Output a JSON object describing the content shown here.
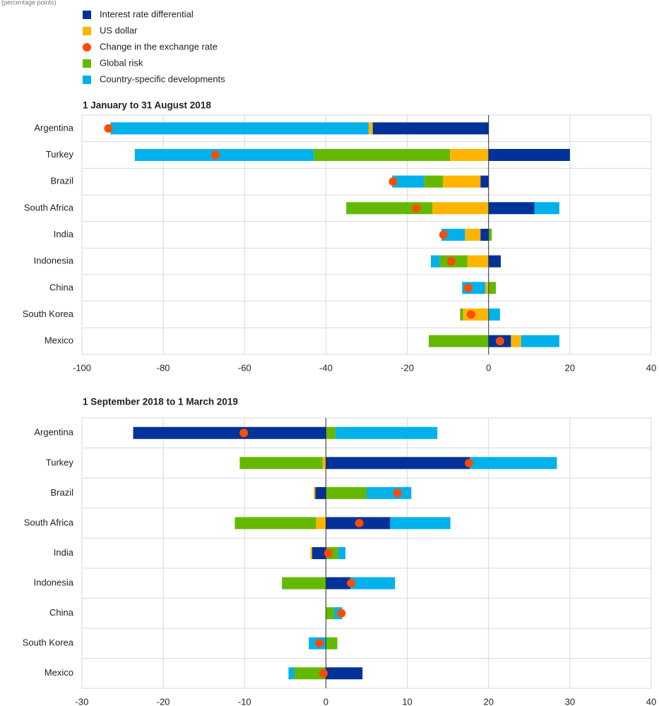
{
  "chart_data": [
    {
      "type": "bar",
      "orientation": "horizontal",
      "stacked": true,
      "subtitle": "(percentage points)",
      "title": "1 January to 31 August 2018",
      "categories": [
        "Argentina",
        "Turkey",
        "Brazil",
        "South Africa",
        "India",
        "Indonesia",
        "China",
        "South Korea",
        "Mexico"
      ],
      "series": [
        {
          "name": "Interest rate differential",
          "color": "#003299",
          "values": [
            -28.5,
            20,
            -2,
            11.3,
            -2,
            3,
            0,
            0,
            5.5
          ]
        },
        {
          "name": "US dollar",
          "color": "#ffb400",
          "values": [
            -1,
            -9.5,
            -9.2,
            -13.8,
            -3.8,
            -5.2,
            -0.8,
            -6.3,
            2.5
          ]
        },
        {
          "name": "Change in the exchange rate",
          "color": "#ff4b00",
          "type": "scatter",
          "values": [
            -93.5,
            -67.2,
            -23.5,
            -17.8,
            -11.1,
            -9.2,
            -5,
            -4.3,
            2.8
          ]
        },
        {
          "name": "Global risk",
          "color": "#65b800",
          "values": [
            0,
            -33.5,
            -4.7,
            -21.2,
            0.8,
            -6.8,
            1.8,
            -0.7,
            -14.7
          ]
        },
        {
          "name": "Country-specific developments",
          "color": "#00b1ea",
          "values": [
            -63.5,
            -44,
            -7.8,
            6.1,
            -5.8,
            -2.2,
            -5.7,
            2.8,
            9.4
          ]
        }
      ],
      "xlim": [
        -100,
        40
      ],
      "xticks": [
        -100,
        -80,
        -60,
        -40,
        -20,
        0,
        20,
        40
      ],
      "grid": true
    },
    {
      "type": "bar",
      "orientation": "horizontal",
      "stacked": true,
      "title": "1 September 2018 to 1 March 2019",
      "categories": [
        "Argentina",
        "Turkey",
        "Brazil",
        "South Africa",
        "India",
        "Indonesia",
        "China",
        "South Korea",
        "Mexico"
      ],
      "series": [
        {
          "color": "#003299",
          "values": [
            -23.7,
            17.7,
            -1.3,
            7.9,
            -1.7,
            3,
            0,
            0,
            4.5
          ]
        },
        {
          "color": "#ffb400",
          "values": [
            0,
            -0.4,
            -0.2,
            -1.2,
            -0.2,
            0,
            0,
            0,
            0
          ]
        },
        {
          "color": "#ff4b00",
          "type": "scatter",
          "values": [
            -10.1,
            17.6,
            8.8,
            4.1,
            0.3,
            3.1,
            1.9,
            -0.8,
            -0.3
          ]
        },
        {
          "color": "#65b800",
          "values": [
            1.2,
            -10.2,
            5,
            -10,
            1.5,
            -5.4,
            1,
            1.4,
            -3.9
          ]
        },
        {
          "color": "#00b1ea",
          "values": [
            12.5,
            10.7,
            5.5,
            7.4,
            0.9,
            5.5,
            1,
            -2.1,
            -0.7
          ]
        }
      ],
      "xlim": [
        -30,
        40
      ],
      "xticks": [
        -30,
        -20,
        -10,
        0,
        10,
        20,
        30,
        40
      ],
      "grid": true
    }
  ]
}
